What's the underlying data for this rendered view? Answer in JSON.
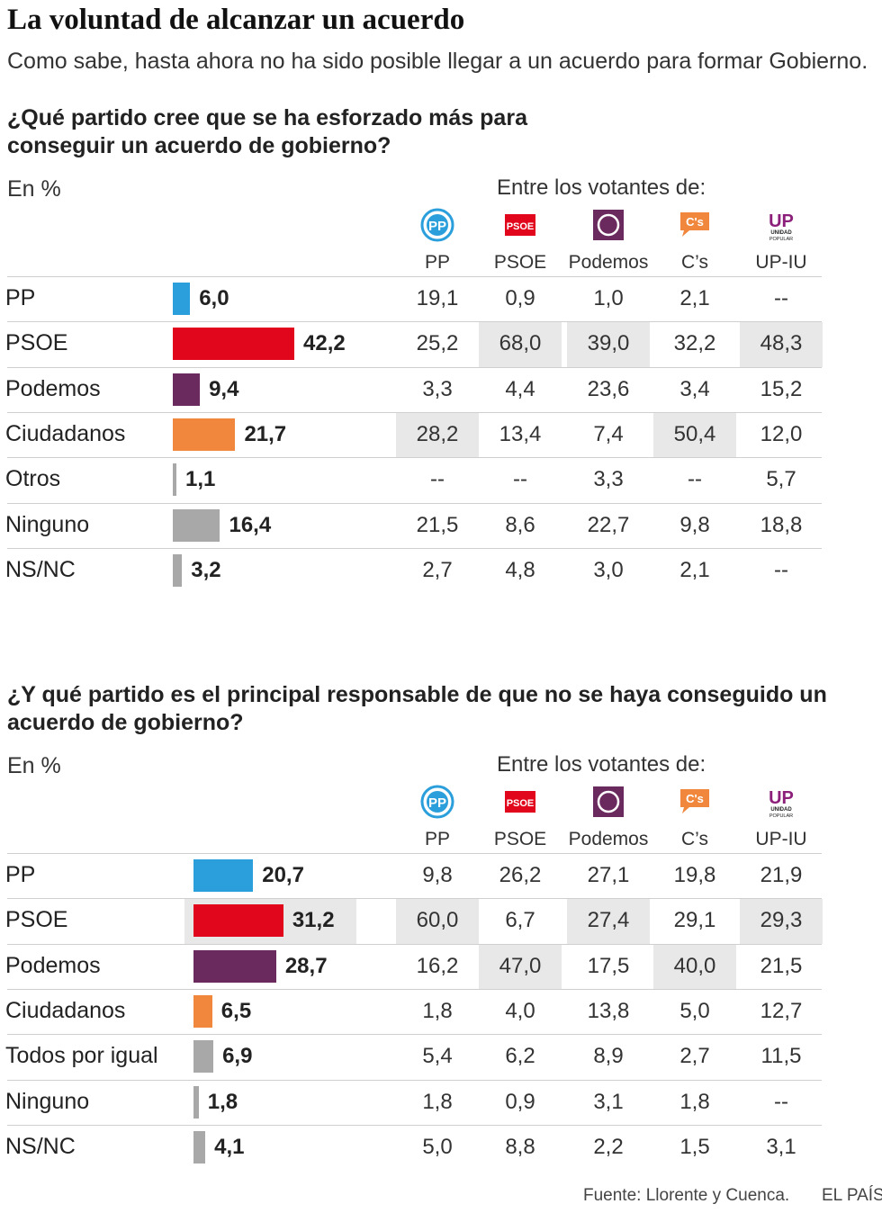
{
  "title": "La voluntad de alcanzar un acuerdo",
  "subtitle": "Como sabe, hasta ahora no ha sido posible llegar a un acuerdo para formar Gobierno.",
  "colors": {
    "PP": "#2b9fdb",
    "PSOE": "#e1061b",
    "Podemos": "#6b2a5e",
    "Ciudadanos": "#f0873c",
    "other": "#a8a8a8",
    "highlight": "#e8e8e8",
    "UP": "#8b1f7a"
  },
  "logos": [
    {
      "icon": "pp-logo-icon",
      "text": "PP"
    },
    {
      "icon": "psoe-logo-icon",
      "text": "PSOE"
    },
    {
      "icon": "podemos-logo-icon",
      "text": ""
    },
    {
      "icon": "cs-logo-icon",
      "text": "C's"
    },
    {
      "icon": "up-logo-icon",
      "text": "UP",
      "sub1": "UNIDAD",
      "sub2": "POPULAR"
    }
  ],
  "chart_data": [
    {
      "type": "table",
      "title": "¿Qué partido cree que se ha esforzado más para conseguir un acuerdo de gobierno?",
      "unit_label": "En %",
      "columns_title": "Entre los votantes de:",
      "columns": [
        "PP",
        "PSOE",
        "Podemos",
        "C’s",
        "UP-IU"
      ],
      "rows": [
        {
          "label": "PP",
          "value": 6.0,
          "display": "6,0",
          "color": "#2b9fdb",
          "cells": [
            "19,1",
            "0,9",
            "1,0",
            "2,1",
            "--"
          ],
          "highlight": [
            false,
            false,
            false,
            false,
            false
          ]
        },
        {
          "label": "PSOE",
          "value": 42.2,
          "display": "42,2",
          "color": "#e1061b",
          "cells": [
            "25,2",
            "68,0",
            "39,0",
            "32,2",
            "48,3"
          ],
          "highlight": [
            false,
            true,
            true,
            false,
            true
          ]
        },
        {
          "label": "Podemos",
          "value": 9.4,
          "display": "9,4",
          "color": "#6b2a5e",
          "cells": [
            "3,3",
            "4,4",
            "23,6",
            "3,4",
            "15,2"
          ],
          "highlight": [
            false,
            false,
            false,
            false,
            false
          ]
        },
        {
          "label": "Ciudadanos",
          "value": 21.7,
          "display": "21,7",
          "color": "#f0873c",
          "cells": [
            "28,2",
            "13,4",
            "7,4",
            "50,4",
            "12,0"
          ],
          "highlight": [
            true,
            false,
            false,
            true,
            false
          ]
        },
        {
          "label": "Otros",
          "value": 1.1,
          "display": "1,1",
          "color": "#a8a8a8",
          "cells": [
            "--",
            "--",
            "3,3",
            "--",
            "5,7"
          ],
          "highlight": [
            false,
            false,
            false,
            false,
            false
          ]
        },
        {
          "label": "Ninguno",
          "value": 16.4,
          "display": "16,4",
          "color": "#a8a8a8",
          "cells": [
            "21,5",
            "8,6",
            "22,7",
            "9,8",
            "18,8"
          ],
          "highlight": [
            false,
            false,
            false,
            false,
            false
          ]
        },
        {
          "label": "NS/NC",
          "value": 3.2,
          "display": "3,2",
          "color": "#a8a8a8",
          "cells": [
            "2,7",
            "4,8",
            "3,0",
            "2,1",
            "--"
          ],
          "highlight": [
            false,
            false,
            false,
            false,
            false
          ]
        }
      ]
    },
    {
      "type": "table",
      "title": "¿Y qué partido es el principal responsable de que no se haya conseguido un acuerdo de gobierno?",
      "unit_label": "En %",
      "columns_title": "Entre los votantes de:",
      "columns": [
        "PP",
        "PSOE",
        "Podemos",
        "C’s",
        "UP-IU"
      ],
      "rows": [
        {
          "label": "PP",
          "value": 20.7,
          "display": "20,7",
          "color": "#2b9fdb",
          "cells": [
            "9,8",
            "26,2",
            "27,1",
            "19,8",
            "21,9"
          ],
          "highlight": [
            false,
            false,
            false,
            false,
            false
          ]
        },
        {
          "label": "PSOE",
          "value": 31.2,
          "display": "31,2",
          "color": "#e1061b",
          "cells": [
            "60,0",
            "6,7",
            "27,4",
            "29,1",
            "29,3"
          ],
          "highlight": [
            true,
            false,
            true,
            false,
            true
          ],
          "label_highlight": true
        },
        {
          "label": "Podemos",
          "value": 28.7,
          "display": "28,7",
          "color": "#6b2a5e",
          "cells": [
            "16,2",
            "47,0",
            "17,5",
            "40,0",
            "21,5"
          ],
          "highlight": [
            false,
            true,
            false,
            true,
            false
          ]
        },
        {
          "label": "Ciudadanos",
          "value": 6.5,
          "display": "6,5",
          "color": "#f0873c",
          "cells": [
            "1,8",
            "4,0",
            "13,8",
            "5,0",
            "12,7"
          ],
          "highlight": [
            false,
            false,
            false,
            false,
            false
          ]
        },
        {
          "label": "Todos por igual",
          "value": 6.9,
          "display": "6,9",
          "color": "#a8a8a8",
          "cells": [
            "5,4",
            "6,2",
            "8,9",
            "2,7",
            "11,5"
          ],
          "highlight": [
            false,
            false,
            false,
            false,
            false
          ]
        },
        {
          "label": "Ninguno",
          "value": 1.8,
          "display": "1,8",
          "color": "#a8a8a8",
          "cells": [
            "1,8",
            "0,9",
            "3,1",
            "1,8",
            "--"
          ],
          "highlight": [
            false,
            false,
            false,
            false,
            false
          ]
        },
        {
          "label": "NS/NC",
          "value": 4.1,
          "display": "4,1",
          "color": "#a8a8a8",
          "cells": [
            "5,0",
            "8,8",
            "2,2",
            "1,5",
            "3,1"
          ],
          "highlight": [
            false,
            false,
            false,
            false,
            false
          ]
        }
      ]
    }
  ],
  "footer": {
    "source": "Fuente: Llorente y Cuenca.",
    "brand": "EL PAÍS"
  }
}
